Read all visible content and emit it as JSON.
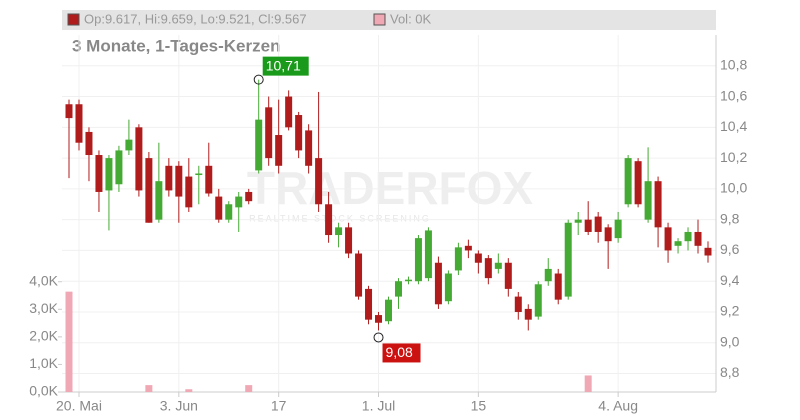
{
  "chart_data": {
    "type": "candlestick",
    "header": "Op:9.617, Hi:9.659, Lo:9.521, Cl:9.567",
    "volume_header": "Vol: 0K",
    "subtitle": "3 Monate, 1-Tages-Kerzen",
    "watermark": "TRADERFOX",
    "watermark_tagline": "REALTIME STOCK SCREENING",
    "categories": [
      null,
      "20. Mai",
      null,
      null,
      null,
      null,
      null,
      null,
      null,
      null,
      null,
      "3. Jun",
      null,
      null,
      null,
      null,
      null,
      null,
      null,
      null,
      null,
      "17",
      null,
      null,
      null,
      null,
      null,
      null,
      null,
      null,
      null,
      "1. Jul",
      null,
      null,
      null,
      null,
      null,
      null,
      null,
      null,
      null,
      "15",
      null,
      null,
      null,
      null,
      null,
      null,
      null,
      null,
      null,
      null,
      null,
      null,
      null,
      "4. Aug",
      null,
      null,
      null,
      null,
      null,
      null,
      null,
      null,
      null
    ],
    "open": [
      10.55,
      10.55,
      10.37,
      10.22,
      9.99,
      10.03,
      10.25,
      10.4,
      10.2,
      9.8,
      10.15,
      10.15,
      10.08,
      10.09,
      10.15,
      9.95,
      9.8,
      9.88,
      9.98,
      10.12,
      10.53,
      10.35,
      10.6,
      10.48,
      10.38,
      10.2,
      9.9,
      9.7,
      9.75,
      9.58,
      9.35,
      9.18,
      9.14,
      9.3,
      9.4,
      9.4,
      9.42,
      9.52,
      9.27,
      9.47,
      9.63,
      9.58,
      9.55,
      9.48,
      9.52,
      9.3,
      9.22,
      9.17,
      9.4,
      9.45,
      9.3,
      9.78,
      9.8,
      9.82,
      9.75,
      9.68,
      9.9,
      10.18,
      9.8,
      10.05,
      9.75,
      9.63,
      9.66,
      9.72,
      9.617
    ],
    "high": [
      10.58,
      10.58,
      10.4,
      10.25,
      10.22,
      10.28,
      10.45,
      10.42,
      10.24,
      10.3,
      10.2,
      10.18,
      10.2,
      10.15,
      10.3,
      10.0,
      9.92,
      9.98,
      10.0,
      10.71,
      10.6,
      10.58,
      10.64,
      10.5,
      10.42,
      10.63,
      9.98,
      9.78,
      9.78,
      9.6,
      9.37,
      9.2,
      9.3,
      9.42,
      9.43,
      9.7,
      9.75,
      9.56,
      9.47,
      9.65,
      9.67,
      9.6,
      9.57,
      9.58,
      9.55,
      9.33,
      9.25,
      9.4,
      9.55,
      9.48,
      9.8,
      9.85,
      9.92,
      9.85,
      9.77,
      9.85,
      10.22,
      10.2,
      10.27,
      10.08,
      9.78,
      9.68,
      9.75,
      9.8,
      9.659
    ],
    "low": [
      10.07,
      10.25,
      10.05,
      9.85,
      9.73,
      9.98,
      10.22,
      9.95,
      9.78,
      9.78,
      9.95,
      9.78,
      9.85,
      9.9,
      9.95,
      9.78,
      9.78,
      9.72,
      9.9,
      10.1,
      10.15,
      10.1,
      10.38,
      10.2,
      10.1,
      9.85,
      9.65,
      9.62,
      9.55,
      9.28,
      9.12,
      9.08,
      9.12,
      9.22,
      9.38,
      9.38,
      9.4,
      9.22,
      9.25,
      9.44,
      9.55,
      9.45,
      9.38,
      9.45,
      9.3,
      9.15,
      9.08,
      9.15,
      9.37,
      9.25,
      9.28,
      9.7,
      9.7,
      9.65,
      9.48,
      9.65,
      9.88,
      9.88,
      9.78,
      9.62,
      9.52,
      9.58,
      9.6,
      9.58,
      9.521
    ],
    "close": [
      10.46,
      10.3,
      10.22,
      9.98,
      10.2,
      10.25,
      10.32,
      9.99,
      9.78,
      10.05,
      9.99,
      9.95,
      9.88,
      10.1,
      9.97,
      9.8,
      9.9,
      9.95,
      9.92,
      10.45,
      10.2,
      10.15,
      10.4,
      10.25,
      10.15,
      9.9,
      9.7,
      9.75,
      9.58,
      9.3,
      9.15,
      9.13,
      9.28,
      9.4,
      9.41,
      9.68,
      9.73,
      9.25,
      9.45,
      9.62,
      9.6,
      9.52,
      9.42,
      9.52,
      9.35,
      9.2,
      9.15,
      9.38,
      9.48,
      9.28,
      9.78,
      9.8,
      9.72,
      9.72,
      9.66,
      9.8,
      10.2,
      9.9,
      10.05,
      9.75,
      9.6,
      9.66,
      9.72,
      9.63,
      9.567
    ],
    "volume": [
      3.64,
      0,
      0,
      0,
      0,
      0,
      0,
      0,
      0.25,
      0,
      0,
      0,
      0.1,
      0,
      0,
      0,
      0,
      0,
      0.25,
      0,
      0,
      0,
      0,
      0,
      0,
      0,
      0,
      0,
      0,
      0,
      0,
      0,
      0,
      0,
      0,
      0,
      0,
      0,
      0,
      0,
      0,
      0,
      0,
      0,
      0,
      0,
      0,
      0,
      0,
      0,
      0,
      0,
      0.6,
      0,
      0,
      0,
      0,
      0,
      0,
      0,
      0,
      0,
      0,
      0,
      0
    ],
    "annotations": [
      {
        "label": "10,71",
        "value": 10.71,
        "color": "#1a9a1a"
      },
      {
        "label": "9,08",
        "value": 9.08,
        "color": "#cc1111"
      }
    ],
    "up_color": "#44aa33",
    "down_color": "#b01c1c",
    "volume_color": "#f0a8b4",
    "ylim": [
      8.68,
      11.0
    ],
    "yticks": [
      {
        "value": 8.8,
        "label": "8,8"
      },
      {
        "value": 9.0,
        "label": "9,0"
      },
      {
        "value": 9.2,
        "label": "9,2"
      },
      {
        "value": 9.4,
        "label": "9,4"
      },
      {
        "value": 9.6,
        "label": "9,6"
      },
      {
        "value": 9.8,
        "label": "9,8"
      },
      {
        "value": 10.0,
        "label": "10,0"
      },
      {
        "value": 10.2,
        "label": "10,2"
      },
      {
        "value": 10.4,
        "label": "10,4"
      },
      {
        "value": 10.6,
        "label": "10,6"
      },
      {
        "value": 10.8,
        "label": "10,8"
      }
    ],
    "y2lim": [
      0,
      12.95
    ],
    "y2ticks": [
      {
        "value": 0,
        "label": "0,0K"
      },
      {
        "value": 1,
        "label": "1,0K"
      },
      {
        "value": 2,
        "label": "2,0K"
      },
      {
        "value": 3,
        "label": "3,0K"
      },
      {
        "value": 4,
        "label": "4,0K"
      }
    ],
    "grid": true
  }
}
